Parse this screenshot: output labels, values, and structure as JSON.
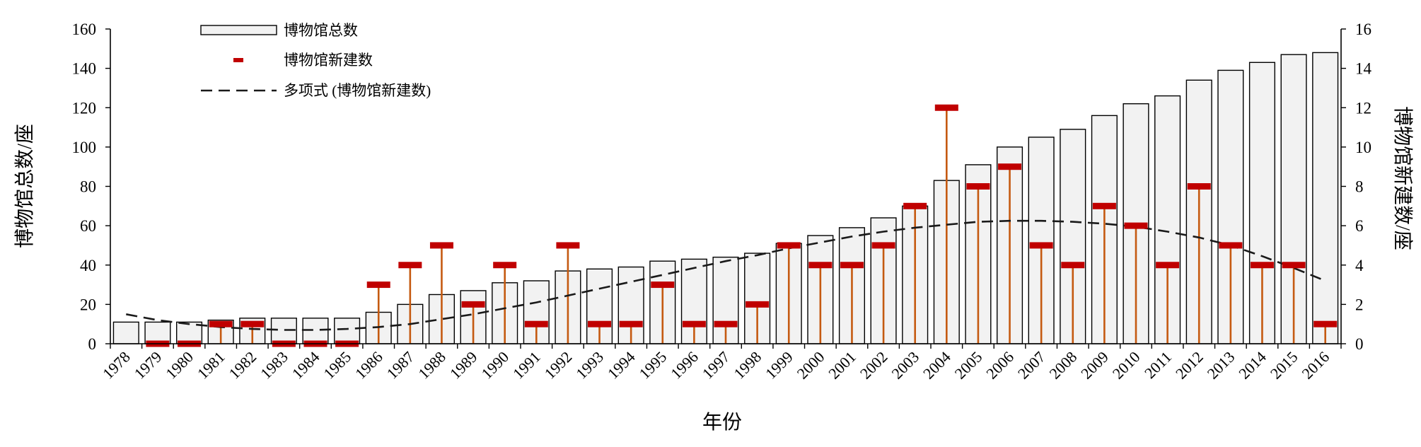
{
  "chart_data": {
    "type": "bar",
    "categories": [
      "1978",
      "1979",
      "1980",
      "1981",
      "1982",
      "1983",
      "1984",
      "1985",
      "1986",
      "1987",
      "1988",
      "1989",
      "1990",
      "1991",
      "1992",
      "1993",
      "1994",
      "1995",
      "1996",
      "1997",
      "1998",
      "1999",
      "2000",
      "2001",
      "2002",
      "2003",
      "2004",
      "2005",
      "2006",
      "2007",
      "2008",
      "2009",
      "2010",
      "2011",
      "2012",
      "2013",
      "2014",
      "2015",
      "2016"
    ],
    "series": [
      {
        "name": "博物馆总数",
        "type": "bar",
        "axis": "left",
        "values": [
          11,
          11,
          11,
          12,
          13,
          13,
          13,
          13,
          16,
          20,
          25,
          27,
          31,
          32,
          37,
          38,
          39,
          42,
          43,
          44,
          46,
          51,
          55,
          59,
          64,
          70,
          83,
          91,
          100,
          105,
          109,
          116,
          122,
          126,
          134,
          139,
          143,
          147,
          148
        ]
      },
      {
        "name": "博物馆新建数",
        "type": "marker",
        "axis": "right",
        "values": [
          null,
          0,
          0,
          1,
          1,
          0,
          0,
          0,
          3,
          4,
          5,
          2,
          4,
          1,
          5,
          1,
          1,
          3,
          1,
          1,
          2,
          5,
          4,
          4,
          5,
          7,
          12,
          8,
          9,
          5,
          4,
          7,
          6,
          4,
          8,
          5,
          4,
          4,
          1
        ]
      },
      {
        "name": "多项式 (博物馆新建数)",
        "type": "trendline",
        "axis": "right",
        "values": [
          1.5,
          1.2,
          1.0,
          0.85,
          0.75,
          0.7,
          0.7,
          0.75,
          0.85,
          1.0,
          1.25,
          1.5,
          1.8,
          2.1,
          2.45,
          2.8,
          3.15,
          3.5,
          3.85,
          4.2,
          4.5,
          4.85,
          5.15,
          5.45,
          5.7,
          5.9,
          6.05,
          6.2,
          6.25,
          6.25,
          6.2,
          6.1,
          5.95,
          5.7,
          5.4,
          5.0,
          4.45,
          3.85,
          3.2
        ]
      }
    ],
    "xlabel": "年份",
    "ylabel": "博物馆总数/座",
    "y2label": "博物馆新建数/座",
    "ylim": [
      0,
      160
    ],
    "y2lim": [
      0,
      16
    ],
    "yticks": [
      0,
      20,
      40,
      60,
      80,
      100,
      120,
      140,
      160
    ],
    "y2ticks": [
      0,
      2,
      4,
      6,
      8,
      10,
      12,
      14,
      16
    ],
    "grid": false,
    "legend_position": "top-left",
    "colors": {
      "bar_fill": "#f2f2f2",
      "bar_edge": "#000000",
      "marker": "#c00000",
      "dropline": "#c55a11",
      "trend": "#1a1a1a"
    }
  }
}
